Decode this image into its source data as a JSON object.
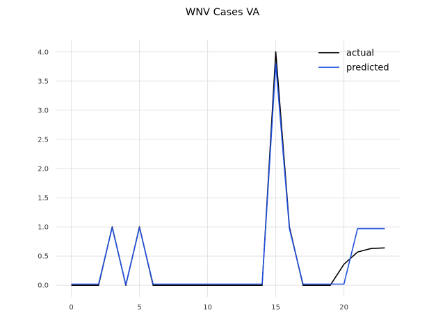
{
  "chart_data": {
    "type": "line",
    "title": "WNV Cases VA",
    "xlabel": "",
    "ylabel": "",
    "xlim": [
      -1.15,
      24.15
    ],
    "ylim": [
      -0.2,
      4.2
    ],
    "x_ticks": [
      0,
      5,
      10,
      15,
      20
    ],
    "y_ticks": [
      0.0,
      0.5,
      1.0,
      1.5,
      2.0,
      2.5,
      3.0,
      3.5,
      4.0
    ],
    "grid": true,
    "legend_position": "top-right",
    "x": [
      0,
      1,
      2,
      3,
      4,
      5,
      6,
      7,
      8,
      9,
      10,
      11,
      12,
      13,
      14,
      15,
      16,
      17,
      18,
      19,
      20,
      21,
      22,
      23
    ],
    "series": [
      {
        "name": "actual",
        "color": "#000000",
        "values": [
          0,
          0,
          0,
          1,
          0,
          1,
          0,
          0,
          0,
          0,
          0,
          0,
          0,
          0,
          0,
          4,
          1,
          0,
          0,
          0,
          0.36,
          0.57,
          0.63,
          0.64
        ]
      },
      {
        "name": "predicted",
        "color": "#1f4fe0",
        "values": [
          0.02,
          0.02,
          0.02,
          0.99,
          0.01,
          0.99,
          0.02,
          0.02,
          0.02,
          0.02,
          0.02,
          0.02,
          0.02,
          0.02,
          0.02,
          3.8,
          0.97,
          0.02,
          0.02,
          0.02,
          0.02,
          0.97,
          0.97,
          0.97
        ]
      }
    ]
  }
}
